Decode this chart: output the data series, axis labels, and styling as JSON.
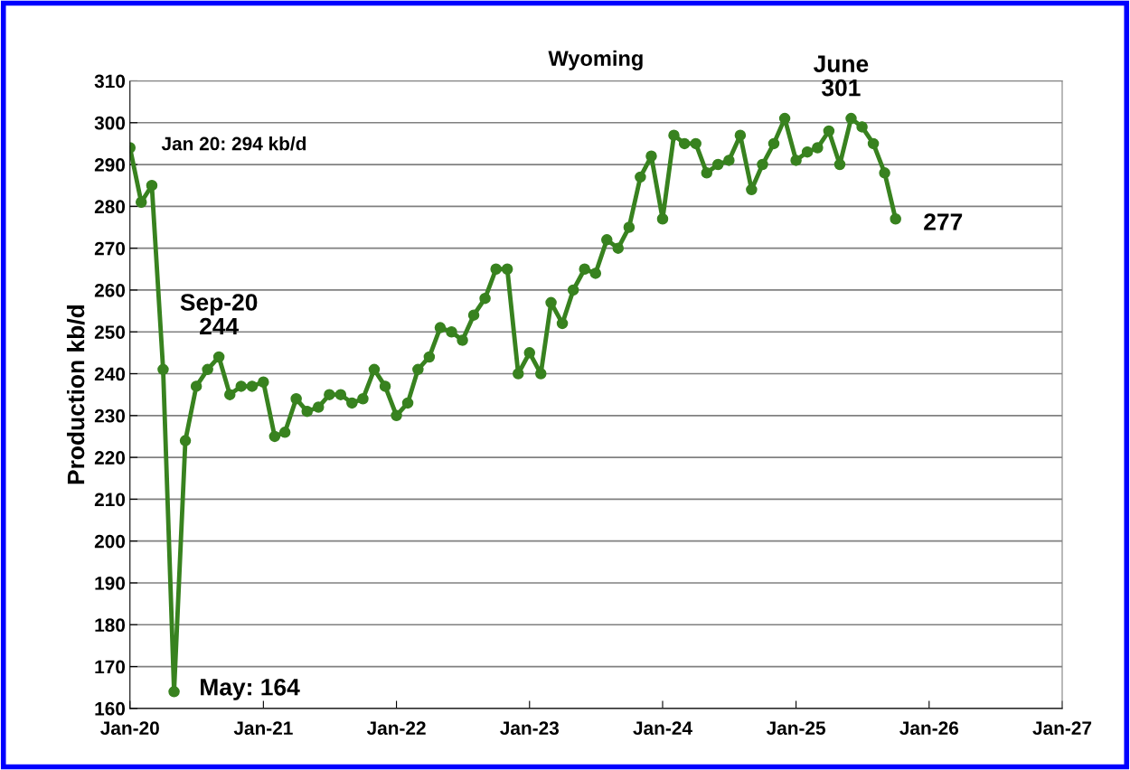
{
  "chart_data": {
    "type": "line",
    "title": "Wyoming",
    "ylabel": "Production kb/d",
    "x": [
      "2020-01",
      "2020-02",
      "2020-03",
      "2020-04",
      "2020-05",
      "2020-06",
      "2020-07",
      "2020-08",
      "2020-09",
      "2020-10",
      "2020-11",
      "2020-12",
      "2021-01",
      "2021-02",
      "2021-03",
      "2021-04",
      "2021-05",
      "2021-06",
      "2021-07",
      "2021-08",
      "2021-09",
      "2021-10",
      "2021-11",
      "2021-12",
      "2022-01",
      "2022-02",
      "2022-03",
      "2022-04",
      "2022-05",
      "2022-06",
      "2022-07",
      "2022-08",
      "2022-09",
      "2022-10",
      "2022-11",
      "2022-12",
      "2023-01",
      "2023-02",
      "2023-03",
      "2023-04",
      "2023-05",
      "2023-06",
      "2023-07",
      "2023-08",
      "2023-09",
      "2023-10",
      "2023-11",
      "2023-12",
      "2024-01",
      "2024-02",
      "2024-03",
      "2024-04",
      "2024-05",
      "2024-06",
      "2024-07",
      "2024-08",
      "2024-09",
      "2024-10",
      "2024-11",
      "2024-12",
      "2025-01",
      "2025-02",
      "2025-03",
      "2025-04",
      "2025-05",
      "2025-06",
      "2025-07",
      "2025-08",
      "2025-09",
      "2025-10"
    ],
    "series": [
      {
        "color": "#38821f",
        "values": [
          294,
          281,
          285,
          241,
          164,
          224,
          237,
          241,
          244,
          235,
          237,
          237,
          238,
          225,
          226,
          234,
          231,
          232,
          235,
          235,
          233,
          234,
          241,
          237,
          230,
          233,
          241,
          244,
          251,
          250,
          248,
          254,
          258,
          265,
          265,
          240,
          245,
          240,
          257,
          252,
          260,
          265,
          264,
          272,
          270,
          275,
          287,
          292,
          277,
          297,
          295,
          295,
          288,
          290,
          291,
          297,
          284,
          290,
          295,
          301,
          291,
          293,
          294,
          298,
          290,
          301,
          299,
          295,
          288,
          277
        ]
      }
    ],
    "xlim": [
      "2020-01",
      "2027-01"
    ],
    "xticks": [
      {
        "value": "2020-01",
        "label": "Jan-20"
      },
      {
        "value": "2021-01",
        "label": "Jan-21"
      },
      {
        "value": "2022-01",
        "label": "Jan-22"
      },
      {
        "value": "2023-01",
        "label": "Jan-23"
      },
      {
        "value": "2024-01",
        "label": "Jan-24"
      },
      {
        "value": "2025-01",
        "label": "Jan-25"
      },
      {
        "value": "2026-01",
        "label": "Jan-26"
      },
      {
        "value": "2027-01",
        "label": "Jan-27"
      }
    ],
    "ylim": [
      160,
      310
    ],
    "yticks": [
      160,
      170,
      180,
      190,
      200,
      210,
      220,
      230,
      240,
      250,
      260,
      270,
      280,
      290,
      300,
      310
    ],
    "grid": "y",
    "marker": "circle",
    "line_style": "solid",
    "legend": false,
    "annotations": [
      {
        "text": "Jan 20: 294 kb/d",
        "x": "2020-01",
        "y": 294
      },
      {
        "text": "Sep-20\n244",
        "x": "2020-09",
        "y": 244
      },
      {
        "text": "May: 164",
        "x": "2020-05",
        "y": 164
      },
      {
        "text": "June\n301",
        "x": "2025-06",
        "y": 301
      },
      {
        "text": "277",
        "x": "2025-10",
        "y": 277
      }
    ]
  }
}
